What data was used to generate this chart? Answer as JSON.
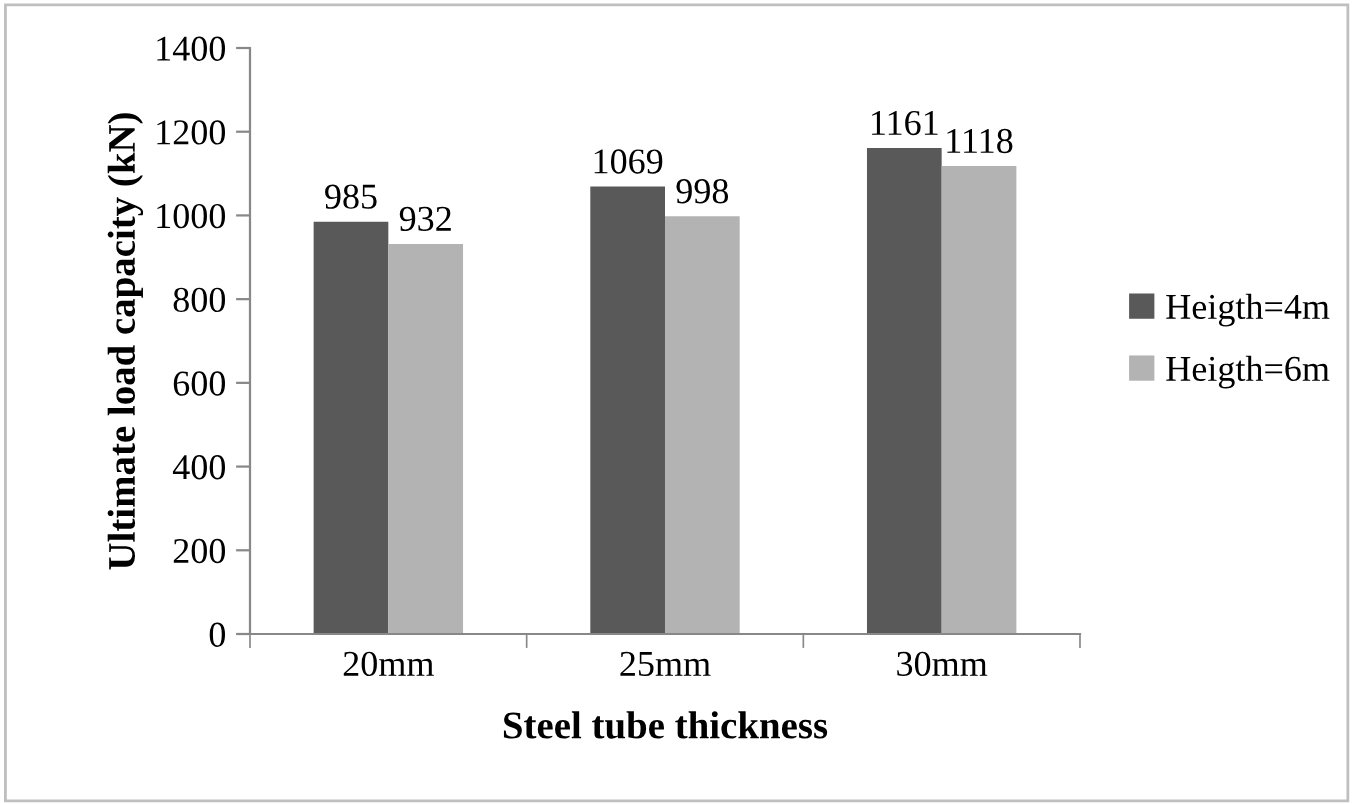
{
  "chart_data": {
    "type": "bar",
    "xlabel": "Steel tube thickness",
    "ylabel": "Ultimate load capacity (kN)",
    "categories": [
      "20mm",
      "25mm",
      "30mm"
    ],
    "series": [
      {
        "name": "Heigth=4m",
        "color": "#595959",
        "values": [
          985,
          1069,
          1161
        ]
      },
      {
        "name": "Heigth=6m",
        "color": "#b3b3b3",
        "values": [
          932,
          998,
          1118
        ]
      }
    ],
    "ylim": [
      0,
      1400
    ],
    "yticks": [
      0,
      200,
      400,
      600,
      800,
      1000,
      1200,
      1400
    ],
    "data_labels": true,
    "legend": "right",
    "grid": false
  }
}
